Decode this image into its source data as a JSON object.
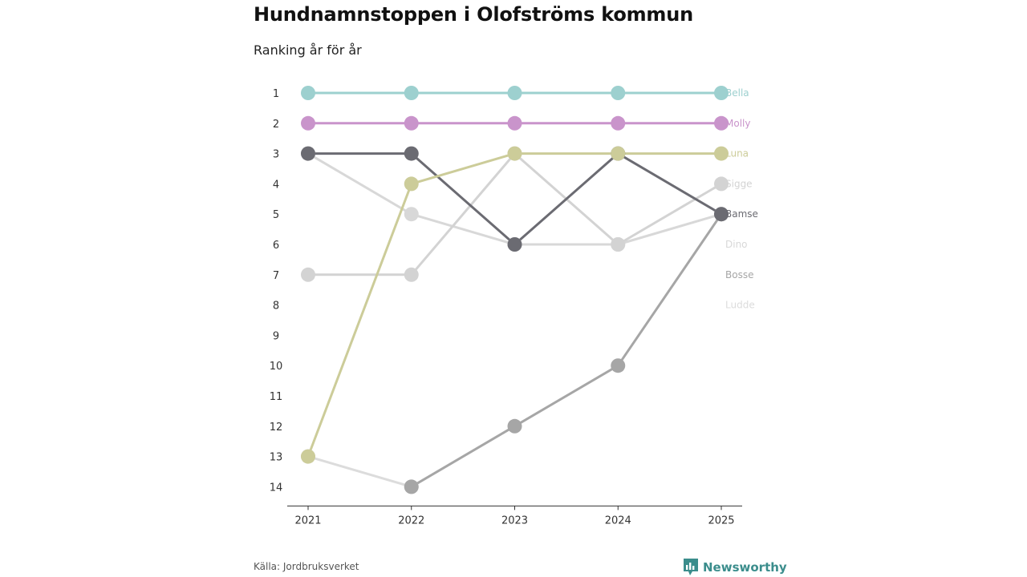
{
  "title": "Hundnamnstoppen i Olofströms kommun",
  "subtitle": "Ranking år för år",
  "source": "Källa: Jordbruksverket",
  "brand": "Newsworthy",
  "colors": {
    "Bella": "#9dd0cf",
    "Molly": "#c994cb",
    "Luna": "#cccc99",
    "Sigge": "#d3d3d3",
    "Bamse": "#6b6b72",
    "Dino": "#d8d8d8",
    "Bosse": "#a6a6a6",
    "Ludde": "#dcdcdc",
    "brand": "#3b8d8c"
  },
  "chart_data": {
    "type": "line",
    "title": "Hundnamnstoppen i Olofströms kommun",
    "subtitle": "Ranking år för år",
    "xlabel": "",
    "ylabel": "",
    "x": [
      "2021",
      "2022",
      "2023",
      "2024",
      "2025"
    ],
    "y_ticks": [
      1,
      2,
      3,
      4,
      5,
      6,
      7,
      8,
      9,
      10,
      11,
      12,
      13,
      14
    ],
    "ylim": [
      1,
      14
    ],
    "y_inverted": true,
    "legend": "right-end labels",
    "series": [
      {
        "name": "Ludde",
        "values": [
          13,
          14,
          null,
          null,
          null
        ]
      },
      {
        "name": "Dino",
        "values": [
          3,
          5,
          6,
          6,
          5
        ]
      },
      {
        "name": "Sigge",
        "values": [
          7,
          7,
          3,
          6,
          4
        ]
      },
      {
        "name": "Bosse",
        "values": [
          null,
          14,
          12,
          10,
          5
        ]
      },
      {
        "name": "Bamse",
        "values": [
          3,
          3,
          6,
          3,
          5
        ]
      },
      {
        "name": "Luna",
        "values": [
          13,
          4,
          3,
          3,
          3
        ]
      },
      {
        "name": "Molly",
        "values": [
          2,
          2,
          2,
          2,
          2
        ]
      },
      {
        "name": "Bella",
        "values": [
          1,
          1,
          1,
          1,
          1
        ]
      }
    ]
  }
}
